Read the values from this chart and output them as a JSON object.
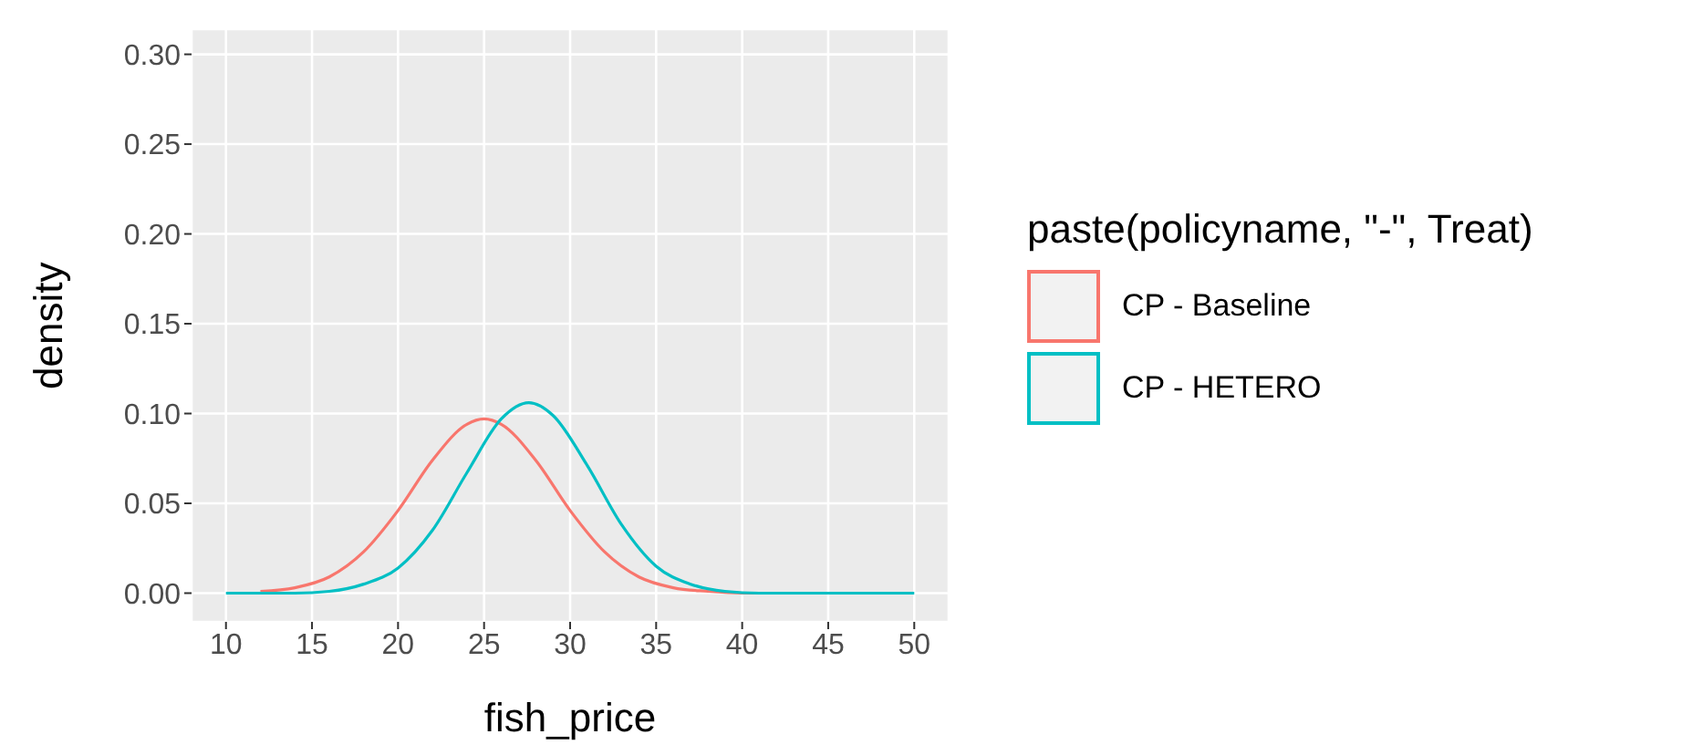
{
  "chart_data": {
    "type": "line",
    "xlabel": "fish_price",
    "ylabel": "density",
    "legend_title": "paste(policyname, \"-\", Treat)",
    "legend": "right",
    "grid": true,
    "marker": "none",
    "line_style": "solid",
    "xlim": [
      8,
      52
    ],
    "xticks": [
      10,
      15,
      20,
      25,
      30,
      35,
      40,
      45,
      50
    ],
    "ylim": [
      -0.016,
      0.314
    ],
    "yticks": [
      {
        "value": 0,
        "label": "0.00"
      },
      {
        "value": 0.05,
        "label": "0.05"
      },
      {
        "value": 0.1,
        "label": "0.10"
      },
      {
        "value": 0.15,
        "label": "0.15"
      },
      {
        "value": 0.2,
        "label": "0.20"
      },
      {
        "value": 0.25,
        "label": "0.25"
      },
      {
        "value": 0.3,
        "label": "0.30"
      }
    ],
    "series": [
      {
        "name": "CP - Baseline",
        "color": "#f8766d",
        "x": [
          12,
          14,
          16,
          18,
          20,
          22,
          24,
          25,
          26,
          28,
          30,
          32,
          34,
          36,
          38,
          40,
          42,
          47
        ],
        "values": [
          0.001,
          0.003,
          0.009,
          0.023,
          0.046,
          0.074,
          0.094,
          0.097,
          0.094,
          0.074,
          0.046,
          0.023,
          0.009,
          0.003,
          0.001,
          0,
          0,
          0
        ]
      },
      {
        "name": "CP - HETERO",
        "color": "#00bfc4",
        "x": [
          10,
          14,
          16,
          18,
          20,
          22,
          24,
          26,
          27.6,
          29,
          31,
          33,
          35,
          37,
          39,
          41,
          44,
          50
        ],
        "values": [
          0,
          0,
          0.001,
          0.005,
          0.014,
          0.035,
          0.067,
          0.097,
          0.106,
          0.099,
          0.071,
          0.038,
          0.015,
          0.005,
          0.001,
          0,
          0,
          0
        ]
      }
    ]
  }
}
